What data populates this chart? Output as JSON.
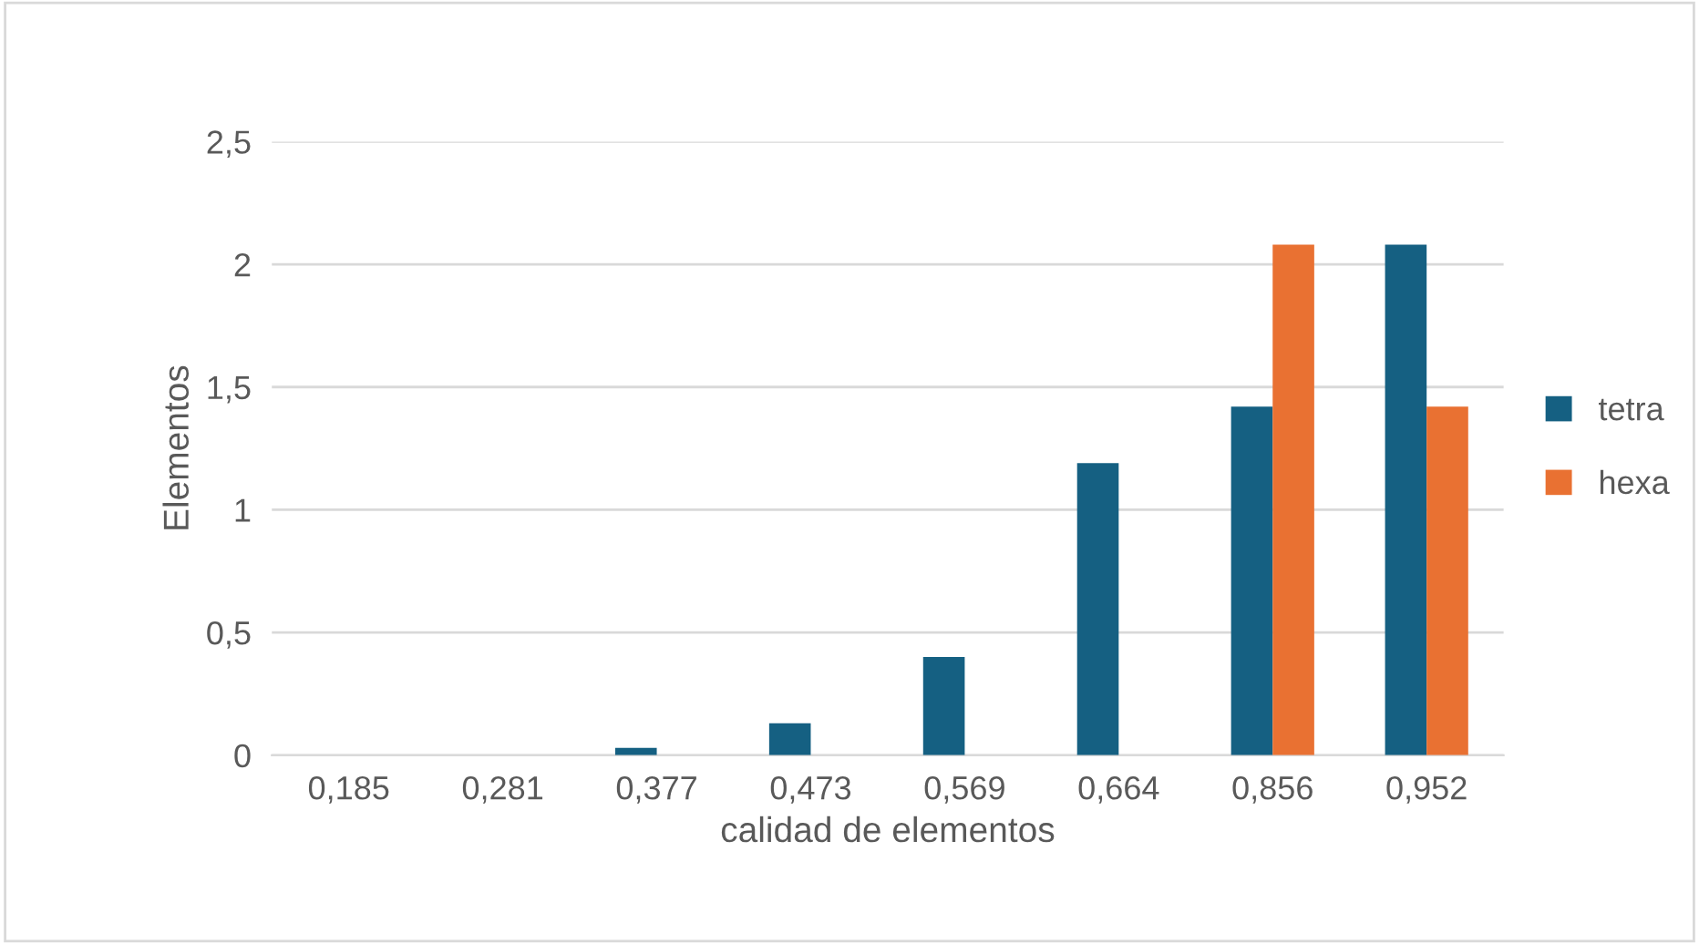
{
  "chart_data": {
    "type": "bar",
    "xlabel": "calidad de elementos",
    "ylabel": "Elementos",
    "categories": [
      "0,185",
      "0,281",
      "0,377",
      "0,473",
      "0,569",
      "0,664",
      "0,856",
      "0,952"
    ],
    "series": [
      {
        "name": "tetra",
        "color": "#156082",
        "values": [
          0,
          0,
          0.03,
          0.13,
          0.4,
          1.19,
          1.42,
          2.08
        ]
      },
      {
        "name": "hexa",
        "color": "#e97132",
        "values": [
          0,
          0,
          0,
          0,
          0,
          0,
          2.08,
          1.42
        ]
      }
    ],
    "ylim": [
      0,
      2.5
    ],
    "yticks": [
      {
        "value": 0,
        "label": "0"
      },
      {
        "value": 0.5,
        "label": "0,5"
      },
      {
        "value": 1,
        "label": "1"
      },
      {
        "value": 1.5,
        "label": "1,5"
      },
      {
        "value": 2,
        "label": "2"
      },
      {
        "value": 2.5,
        "label": "2,5"
      }
    ],
    "grid": "y",
    "legend": "right"
  }
}
